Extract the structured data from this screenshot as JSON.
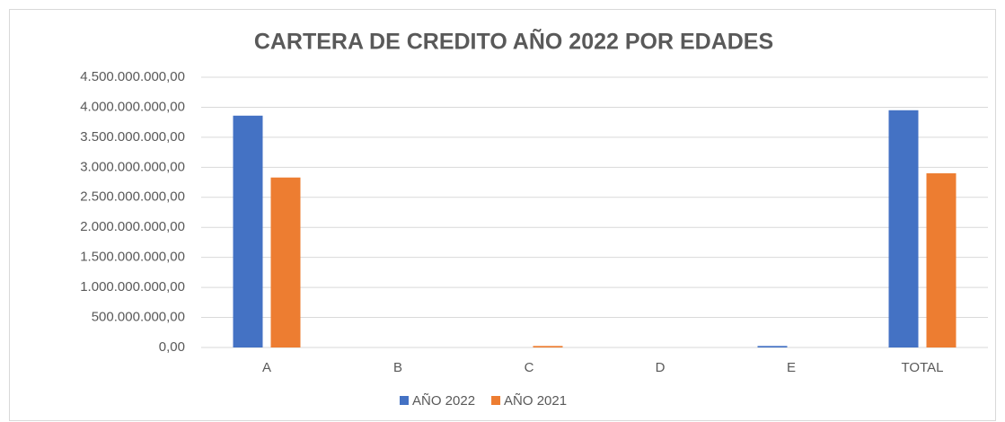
{
  "chart_data": {
    "type": "bar",
    "title": "CARTERA DE CREDITO AÑO 2022 POR EDADES",
    "categories": [
      "A",
      "B",
      "C",
      "D",
      "E",
      "TOTAL"
    ],
    "series": [
      {
        "name": "AÑO 2022",
        "color": "#4472c4",
        "values": [
          3860000000,
          0,
          0,
          0,
          25000000,
          3950000000
        ]
      },
      {
        "name": "AÑO 2021",
        "color": "#ed7d31",
        "values": [
          2830000000,
          0,
          25000000,
          0,
          0,
          2900000000
        ]
      }
    ],
    "ylim": [
      0,
      4500000000
    ],
    "yticks": [
      {
        "value": 0,
        "label": "0,00"
      },
      {
        "value": 500000000,
        "label": "500.000.000,00"
      },
      {
        "value": 1000000000,
        "label": "1.000.000.000,00"
      },
      {
        "value": 1500000000,
        "label": "1.500.000.000,00"
      },
      {
        "value": 2000000000,
        "label": "2.000.000.000,00"
      },
      {
        "value": 2500000000,
        "label": "2.500.000.000,00"
      },
      {
        "value": 3000000000,
        "label": "3.000.000.000,00"
      },
      {
        "value": 3500000000,
        "label": "3.500.000.000,00"
      },
      {
        "value": 4000000000,
        "label": "4.000.000.000,00"
      },
      {
        "value": 4500000000,
        "label": "4.500.000.000,00"
      }
    ],
    "grid": true,
    "legend": "bottom"
  }
}
